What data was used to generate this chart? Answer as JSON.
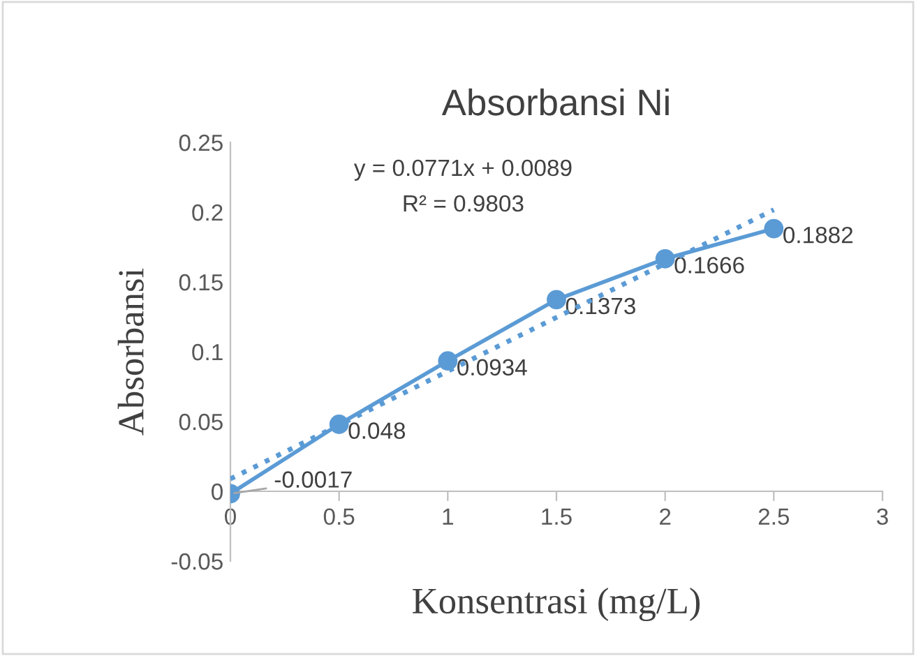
{
  "chart_data": {
    "type": "line",
    "title": "Absorbansi Ni",
    "xlabel": "Konsentrasi (mg/L)",
    "ylabel": "Absorbansi",
    "x": [
      0,
      0.5,
      1,
      1.5,
      2,
      2.5
    ],
    "series": [
      {
        "color": "#5b9bd5",
        "values": [
          -0.0017,
          0.048,
          0.0934,
          0.1373,
          0.1666,
          0.1882
        ],
        "marker": "circle",
        "line_style": "solid",
        "data_labels": true
      },
      {
        "color": "#5b9bd5",
        "x": [
          0,
          2.5
        ],
        "values": [
          0.0089,
          0.2017
        ],
        "marker": "none",
        "line_style": "dotted"
      }
    ],
    "annotations": [
      "y = 0.0771x + 0.0089",
      "R² = 0.9803"
    ],
    "xlim": [
      0,
      3
    ],
    "xticks": [
      0,
      0.5,
      1,
      1.5,
      2,
      2.5,
      3
    ],
    "ylim": [
      -0.05,
      0.25
    ],
    "yticks": [
      -0.05,
      0,
      0.05,
      0.1,
      0.15,
      0.2,
      0.25
    ],
    "grid": false,
    "legend": false
  }
}
